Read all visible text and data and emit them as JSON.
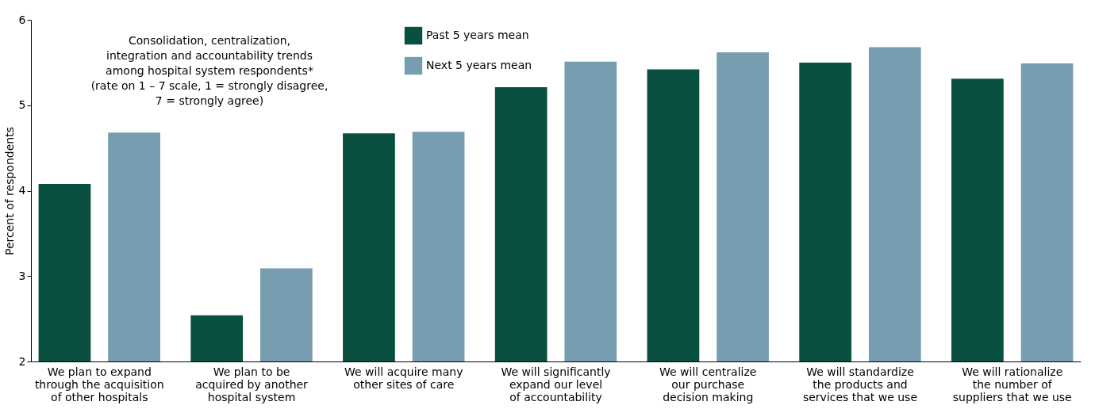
{
  "chart_data": {
    "type": "bar",
    "ylabel": "Percent of respondents",
    "categories": [
      "We plan to expand\nthrough the acquisition\nof other hospitals",
      "We plan to be\nacquired by another\nhospital system",
      "We will acquire many\nother sites of care",
      "We will significantly\nexpand our level\nof accountability",
      "We will centralize\nour purchase\ndecision making",
      "We will standardize\nthe products and\nservices that we use",
      "We will rationalize\nthe number of\nsuppliers that we use"
    ],
    "series": [
      {
        "name": "Past 5 years mean",
        "color": "#0a5040",
        "values": [
          4.08,
          2.54,
          4.67,
          5.21,
          5.42,
          5.5,
          5.31
        ]
      },
      {
        "name": "Next 5 years mean",
        "color": "#779eb0",
        "values": [
          4.68,
          3.09,
          4.69,
          5.51,
          5.62,
          5.68,
          5.49
        ]
      }
    ],
    "ylim": [
      2,
      6
    ],
    "yticks": [
      2,
      3,
      4,
      5,
      6
    ],
    "legend": "top",
    "grid": false,
    "annotations": [
      "Consolidation, centralization,\nintegration and accountability trends\namong hospital system respondents*\n(rate on 1 – 7 scale, 1 = strongly disagree,\n7 = strongly agree)"
    ]
  }
}
